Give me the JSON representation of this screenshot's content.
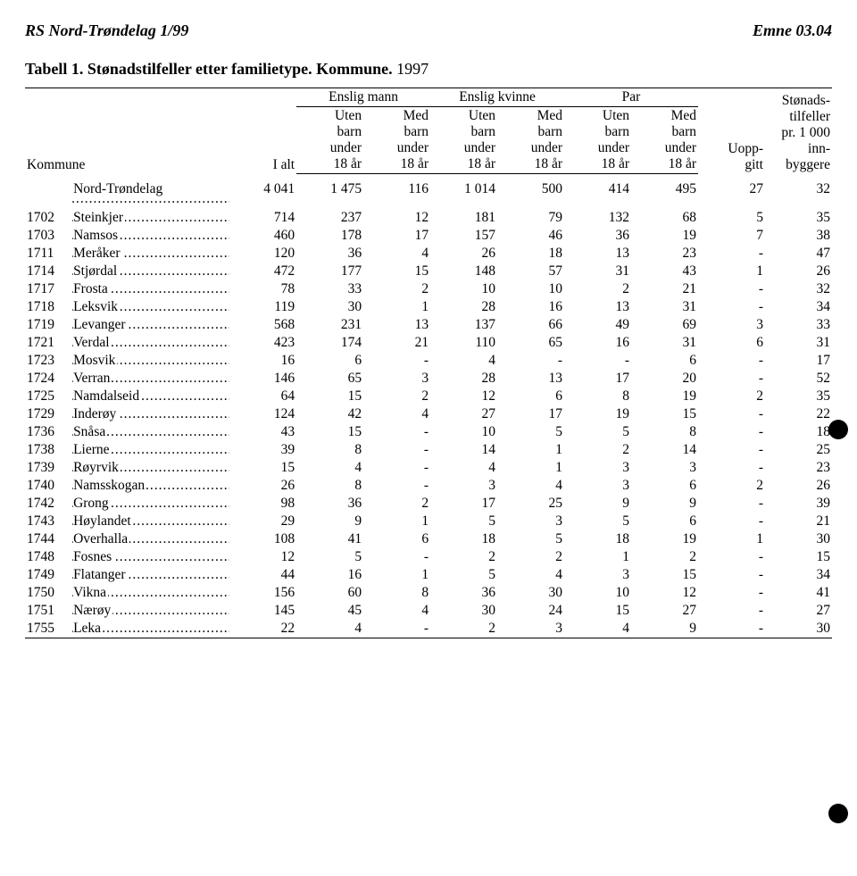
{
  "header": {
    "left": "RS Nord-Trøndelag 1/99",
    "right": "Emne 03.04"
  },
  "title": {
    "label": "Tabell 1.",
    "bold": "Stønadstilfeller etter familietype. Kommune.",
    "year": "1997"
  },
  "columns": {
    "kommune": "Kommune",
    "ialt": "I alt",
    "group_em": "Enslig mann",
    "group_ek": "Enslig kvinne",
    "group_par": "Par",
    "sub_uten": "Uten\nbarn\nunder\n18 år",
    "sub_med": "Med\nbarn\nunder\n18 år",
    "uopp": "Uopp-\ngitt",
    "stonad": "Stønads-\ntilfeller\npr. 1 000\ninn-\nbyggere"
  },
  "total": {
    "name": "Nord-Trøndelag",
    "vals": [
      "4 041",
      "1 475",
      "116",
      "1 014",
      "500",
      "414",
      "495",
      "27",
      "32"
    ]
  },
  "rows": [
    {
      "code": "1702",
      "name": "Steinkjer",
      "v": [
        "714",
        "237",
        "12",
        "181",
        "79",
        "132",
        "68",
        "5",
        "35"
      ]
    },
    {
      "code": "1703",
      "name": "Namsos",
      "v": [
        "460",
        "178",
        "17",
        "157",
        "46",
        "36",
        "19",
        "7",
        "38"
      ]
    },
    {
      "code": "1711",
      "name": "Meråker",
      "v": [
        "120",
        "36",
        "4",
        "26",
        "18",
        "13",
        "23",
        "-",
        "47"
      ]
    },
    {
      "code": "1714",
      "name": "Stjørdal",
      "v": [
        "472",
        "177",
        "15",
        "148",
        "57",
        "31",
        "43",
        "1",
        "26"
      ]
    },
    {
      "code": "1717",
      "name": "Frosta",
      "v": [
        "78",
        "33",
        "2",
        "10",
        "10",
        "2",
        "21",
        "-",
        "32"
      ]
    },
    {
      "code": "1718",
      "name": "Leksvik",
      "v": [
        "119",
        "30",
        "1",
        "28",
        "16",
        "13",
        "31",
        "-",
        "34"
      ]
    },
    {
      "code": "1719",
      "name": "Levanger",
      "v": [
        "568",
        "231",
        "13",
        "137",
        "66",
        "49",
        "69",
        "3",
        "33"
      ]
    },
    {
      "code": "1721",
      "name": "Verdal",
      "v": [
        "423",
        "174",
        "21",
        "110",
        "65",
        "16",
        "31",
        "6",
        "31"
      ]
    },
    {
      "code": "1723",
      "name": "Mosvik",
      "v": [
        "16",
        "6",
        "-",
        "4",
        "-",
        "-",
        "6",
        "-",
        "17"
      ]
    },
    {
      "code": "1724",
      "name": "Verran",
      "v": [
        "146",
        "65",
        "3",
        "28",
        "13",
        "17",
        "20",
        "-",
        "52"
      ]
    },
    {
      "code": "1725",
      "name": "Namdalseid",
      "v": [
        "64",
        "15",
        "2",
        "12",
        "6",
        "8",
        "19",
        "2",
        "35"
      ]
    },
    {
      "code": "1729",
      "name": "Inderøy",
      "v": [
        "124",
        "42",
        "4",
        "27",
        "17",
        "19",
        "15",
        "-",
        "22"
      ]
    },
    {
      "code": "1736",
      "name": "Snåsa",
      "v": [
        "43",
        "15",
        "-",
        "10",
        "5",
        "5",
        "8",
        "-",
        "18"
      ]
    },
    {
      "code": "1738",
      "name": "Lierne",
      "v": [
        "39",
        "8",
        "-",
        "14",
        "1",
        "2",
        "14",
        "-",
        "25"
      ]
    },
    {
      "code": "1739",
      "name": "Røyrvik",
      "v": [
        "15",
        "4",
        "-",
        "4",
        "1",
        "3",
        "3",
        "-",
        "23"
      ]
    },
    {
      "code": "1740",
      "name": "Namsskogan",
      "v": [
        "26",
        "8",
        "-",
        "3",
        "4",
        "3",
        "6",
        "2",
        "26"
      ]
    },
    {
      "code": "1742",
      "name": "Grong",
      "v": [
        "98",
        "36",
        "2",
        "17",
        "25",
        "9",
        "9",
        "-",
        "39"
      ]
    },
    {
      "code": "1743",
      "name": "Høylandet",
      "v": [
        "29",
        "9",
        "1",
        "5",
        "3",
        "5",
        "6",
        "-",
        "21"
      ]
    },
    {
      "code": "1744",
      "name": "Overhalla",
      "v": [
        "108",
        "41",
        "6",
        "18",
        "5",
        "18",
        "19",
        "1",
        "30"
      ]
    },
    {
      "code": "1748",
      "name": "Fosnes",
      "v": [
        "12",
        "5",
        "-",
        "2",
        "2",
        "1",
        "2",
        "-",
        "15"
      ]
    },
    {
      "code": "1749",
      "name": "Flatanger",
      "v": [
        "44",
        "16",
        "1",
        "5",
        "4",
        "3",
        "15",
        "-",
        "34"
      ]
    },
    {
      "code": "1750",
      "name": "Vikna",
      "v": [
        "156",
        "60",
        "8",
        "36",
        "30",
        "10",
        "12",
        "-",
        "41"
      ]
    },
    {
      "code": "1751",
      "name": "Nærøy",
      "v": [
        "145",
        "45",
        "4",
        "30",
        "24",
        "15",
        "27",
        "-",
        "27"
      ]
    },
    {
      "code": "1755",
      "name": "Leka",
      "v": [
        "22",
        "4",
        "-",
        "2",
        "3",
        "4",
        "9",
        "-",
        "30"
      ]
    }
  ]
}
